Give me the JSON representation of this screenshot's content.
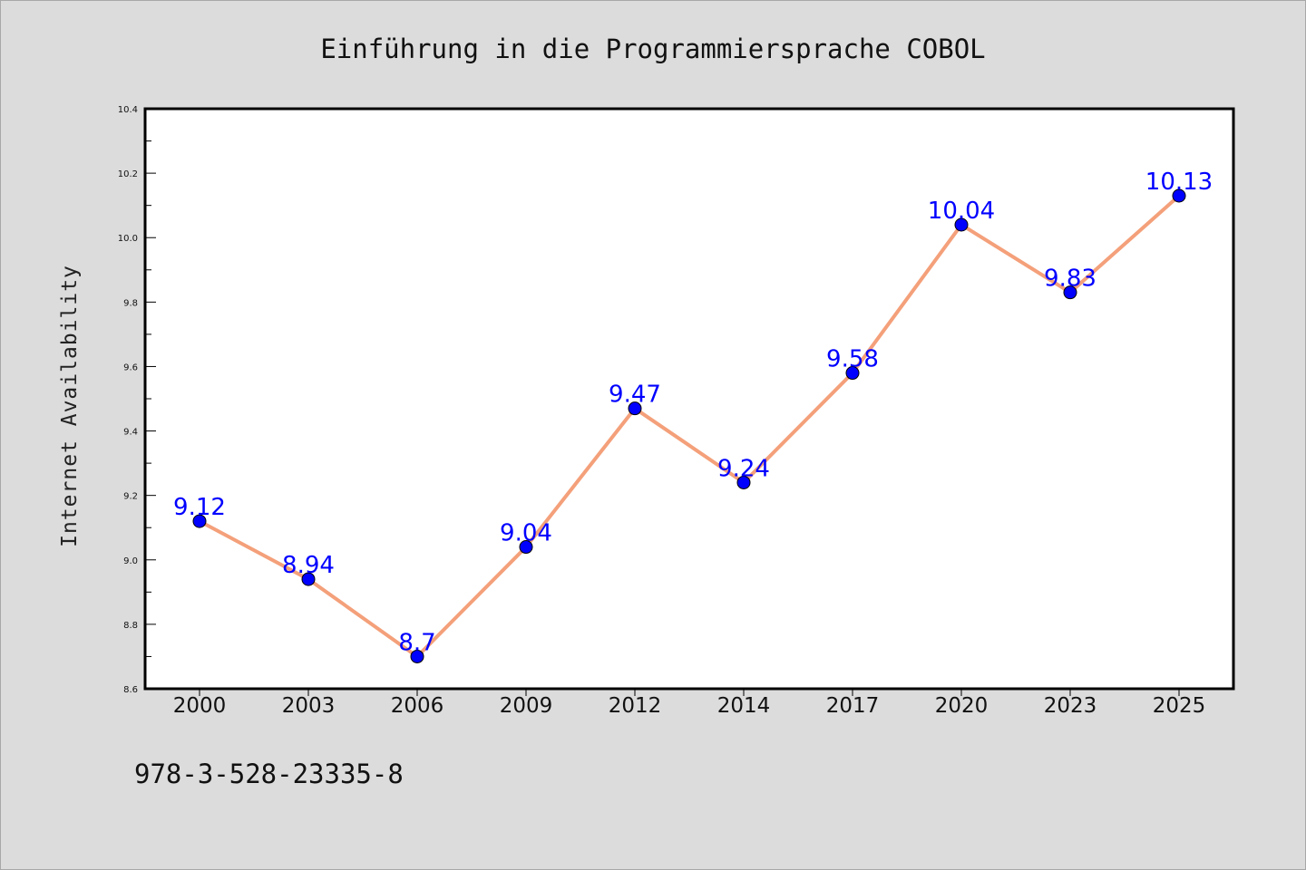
{
  "chart_data": {
    "type": "line",
    "title": "Einführung in die Programmiersprache COBOL",
    "xlabel": "",
    "ylabel": "Internet Availability",
    "categories": [
      "2000",
      "2003",
      "2006",
      "2009",
      "2012",
      "2014",
      "2017",
      "2020",
      "2023",
      "2025"
    ],
    "series": [
      {
        "values": [
          9.12,
          8.94,
          8.7,
          9.04,
          9.47,
          9.24,
          9.58,
          10.04,
          9.83,
          10.13
        ]
      }
    ],
    "data_labels": [
      "9.12",
      "8.94",
      "8.7",
      "9.04",
      "9.47",
      "9.24",
      "9.58",
      "10.04",
      "9.83",
      "10.13"
    ],
    "ylim": [
      8.6,
      10.4
    ],
    "yticks": [
      "8.6",
      "8.8",
      "9.0",
      "9.2",
      "9.4",
      "9.6",
      "9.8",
      "10.0",
      "10.2",
      "10.4"
    ],
    "grid": false,
    "line_color": "#f4a07a",
    "marker_color": "#0000ff",
    "label_color": "#0000ff"
  },
  "footer": {
    "isbn": "978-3-528-23335-8"
  }
}
